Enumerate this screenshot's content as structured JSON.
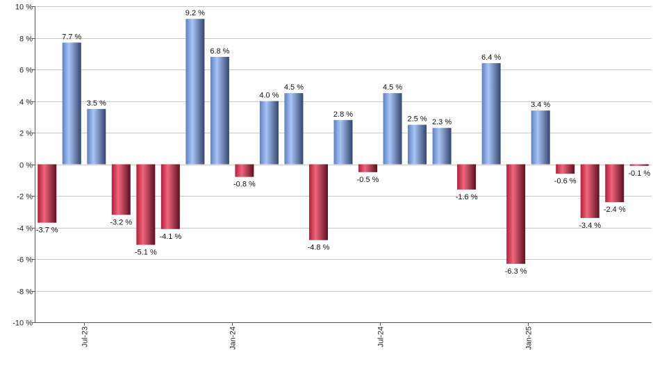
{
  "chart_data": {
    "type": "bar",
    "ylim": [
      -10,
      10
    ],
    "y_tick_labels": [
      "10 %",
      "8 %",
      "6 %",
      "4 %",
      "2 %",
      "0 %",
      "-2 %",
      "-4 %",
      "-6 %",
      "-8 %",
      "-10 %"
    ],
    "y_ticks": [
      10,
      8,
      6,
      4,
      2,
      0,
      -2,
      -4,
      -6,
      -8,
      -10
    ],
    "x_tick_labels": [
      "Jul-23",
      "Jan-24",
      "Jul-24",
      "Jan-25"
    ],
    "x_tick_positions": [
      2,
      8,
      14,
      20
    ],
    "grid": true,
    "values": [
      -3.7,
      7.7,
      3.5,
      -3.2,
      -5.1,
      -4.1,
      9.2,
      6.8,
      -0.8,
      4.0,
      4.5,
      -4.8,
      2.8,
      -0.5,
      4.5,
      2.5,
      2.3,
      -1.6,
      6.4,
      -6.3,
      3.4,
      -0.6,
      -3.4,
      -2.4,
      -0.1
    ],
    "data_labels": [
      "-3.7 %",
      "7.7 %",
      "3.5 %",
      "-3.2 %",
      "-5.1 %",
      "-4.1 %",
      "9.2 %",
      "6.8 %",
      "-0.8 %",
      "4.0 %",
      "4.5 %",
      "-4.8 %",
      "2.8 %",
      "-0.5 %",
      "4.5 %",
      "2.5 %",
      "2.3 %",
      "-1.6 %",
      "6.4 %",
      "-6.3 %",
      "3.4 %",
      "-0.6 %",
      "-3.4 %",
      "-2.4 %",
      "-0.1 %"
    ],
    "colors": {
      "positive": "#7f9fe0",
      "negative": "#c8304a"
    }
  }
}
